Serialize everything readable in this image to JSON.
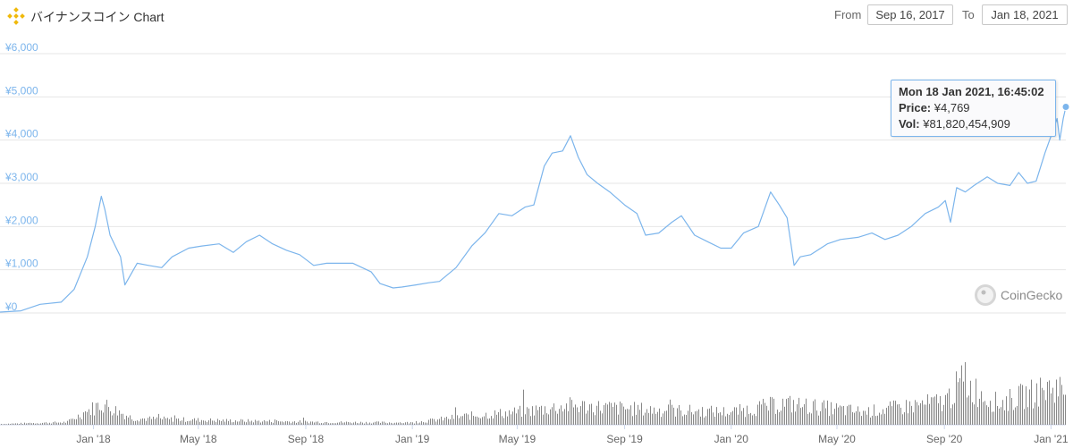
{
  "header": {
    "title": "バイナンスコイン Chart",
    "from_label": "From",
    "from_value": "Sep 16, 2017",
    "to_label": "To",
    "to_value": "Jan 18, 2021",
    "logo_icon": "binance-logo-icon"
  },
  "tooltip": {
    "date": "Mon 18 Jan 2021, 16:45:02",
    "price_label": "Price:",
    "price_value": "¥4,769",
    "vol_label": "Vol:",
    "vol_value": "¥81,820,454,909"
  },
  "watermark": {
    "text": "CoinGecko",
    "icon": "coingecko-logo-icon"
  },
  "colors": {
    "line": "#7cb5ec",
    "grid": "#e6e6e6",
    "volume": "#888888",
    "axis_label": "#7cb5ec"
  },
  "chart_data": {
    "type": "line",
    "title": "バイナンスコイン Chart",
    "xlabel": "",
    "ylabel": "",
    "x_range": [
      "2017-09-16",
      "2021-01-18"
    ],
    "ylim": [
      0,
      6000
    ],
    "y_ticks": [
      "¥0",
      "¥1,000",
      "¥2,000",
      "¥3,000",
      "¥4,000",
      "¥5,000",
      "¥6,000"
    ],
    "y_tick_values": [
      0,
      1000,
      2000,
      3000,
      4000,
      5000,
      6000
    ],
    "x_ticks": [
      "Jan '18",
      "May '18",
      "Sep '18",
      "Jan '19",
      "May '19",
      "Sep '19",
      "Jan '20",
      "May '20",
      "Sep '20",
      "Jan '21"
    ],
    "x_tick_dates": [
      "2018-01-01",
      "2018-05-01",
      "2018-09-01",
      "2019-01-01",
      "2019-05-01",
      "2019-09-01",
      "2020-01-01",
      "2020-05-01",
      "2020-09-01",
      "2021-01-01"
    ],
    "grid": true,
    "legend": "none",
    "series": [
      {
        "name": "Price",
        "points": [
          [
            "2017-09-16",
            20
          ],
          [
            "2017-10-10",
            50
          ],
          [
            "2017-11-01",
            200
          ],
          [
            "2017-11-25",
            250
          ],
          [
            "2017-12-10",
            550
          ],
          [
            "2017-12-25",
            1300
          ],
          [
            "2018-01-03",
            2000
          ],
          [
            "2018-01-10",
            2700
          ],
          [
            "2018-01-14",
            2400
          ],
          [
            "2018-01-20",
            1800
          ],
          [
            "2018-02-01",
            1300
          ],
          [
            "2018-02-06",
            650
          ],
          [
            "2018-02-20",
            1150
          ],
          [
            "2018-03-05",
            1100
          ],
          [
            "2018-03-20",
            1050
          ],
          [
            "2018-04-01",
            1300
          ],
          [
            "2018-04-20",
            1500
          ],
          [
            "2018-05-05",
            1550
          ],
          [
            "2018-05-25",
            1600
          ],
          [
            "2018-06-10",
            1400
          ],
          [
            "2018-06-25",
            1650
          ],
          [
            "2018-07-10",
            1800
          ],
          [
            "2018-07-25",
            1600
          ],
          [
            "2018-08-10",
            1450
          ],
          [
            "2018-08-25",
            1350
          ],
          [
            "2018-09-10",
            1100
          ],
          [
            "2018-09-25",
            1150
          ],
          [
            "2018-10-10",
            1150
          ],
          [
            "2018-10-25",
            1150
          ],
          [
            "2018-11-15",
            950
          ],
          [
            "2018-11-25",
            680
          ],
          [
            "2018-12-10",
            580
          ],
          [
            "2018-12-20",
            600
          ],
          [
            "2019-01-05",
            650
          ],
          [
            "2019-01-20",
            700
          ],
          [
            "2019-02-01",
            730
          ],
          [
            "2019-02-20",
            1050
          ],
          [
            "2019-03-10",
            1550
          ],
          [
            "2019-03-25",
            1850
          ],
          [
            "2019-04-10",
            2300
          ],
          [
            "2019-04-25",
            2250
          ],
          [
            "2019-05-10",
            2450
          ],
          [
            "2019-05-20",
            2500
          ],
          [
            "2019-06-01",
            3400
          ],
          [
            "2019-06-10",
            3700
          ],
          [
            "2019-06-22",
            3750
          ],
          [
            "2019-07-01",
            4100
          ],
          [
            "2019-07-10",
            3600
          ],
          [
            "2019-07-20",
            3200
          ],
          [
            "2019-08-01",
            3000
          ],
          [
            "2019-08-15",
            2800
          ],
          [
            "2019-09-01",
            2500
          ],
          [
            "2019-09-15",
            2300
          ],
          [
            "2019-09-25",
            1800
          ],
          [
            "2019-10-10",
            1850
          ],
          [
            "2019-10-25",
            2100
          ],
          [
            "2019-11-05",
            2250
          ],
          [
            "2019-11-20",
            1800
          ],
          [
            "2019-12-05",
            1650
          ],
          [
            "2019-12-20",
            1500
          ],
          [
            "2020-01-01",
            1500
          ],
          [
            "2020-01-15",
            1850
          ],
          [
            "2020-02-01",
            2000
          ],
          [
            "2020-02-15",
            2800
          ],
          [
            "2020-02-25",
            2500
          ],
          [
            "2020-03-05",
            2200
          ],
          [
            "2020-03-13",
            1100
          ],
          [
            "2020-03-20",
            1300
          ],
          [
            "2020-04-01",
            1350
          ],
          [
            "2020-04-20",
            1600
          ],
          [
            "2020-05-05",
            1700
          ],
          [
            "2020-05-25",
            1750
          ],
          [
            "2020-06-10",
            1850
          ],
          [
            "2020-06-25",
            1700
          ],
          [
            "2020-07-10",
            1800
          ],
          [
            "2020-07-25",
            2000
          ],
          [
            "2020-08-10",
            2300
          ],
          [
            "2020-08-25",
            2450
          ],
          [
            "2020-09-02",
            2600
          ],
          [
            "2020-09-08",
            2100
          ],
          [
            "2020-09-15",
            2900
          ],
          [
            "2020-09-25",
            2800
          ],
          [
            "2020-10-05",
            2950
          ],
          [
            "2020-10-20",
            3150
          ],
          [
            "2020-11-01",
            3000
          ],
          [
            "2020-11-15",
            2950
          ],
          [
            "2020-11-25",
            3250
          ],
          [
            "2020-12-05",
            3000
          ],
          [
            "2020-12-15",
            3050
          ],
          [
            "2020-12-25",
            3700
          ],
          [
            "2021-01-03",
            4200
          ],
          [
            "2021-01-08",
            4500
          ],
          [
            "2021-01-11",
            4000
          ],
          [
            "2021-01-15",
            4500
          ],
          [
            "2021-01-18",
            4769
          ]
        ]
      }
    ],
    "volume_series": {
      "name": "Vol",
      "relative_levels": [
        [
          "2017-09-16",
          0.02
        ],
        [
          "2017-12-01",
          0.06
        ],
        [
          "2018-01-10",
          0.5
        ],
        [
          "2018-02-15",
          0.15
        ],
        [
          "2018-06-01",
          0.1
        ],
        [
          "2018-10-01",
          0.06
        ],
        [
          "2019-01-01",
          0.05
        ],
        [
          "2019-03-01",
          0.2
        ],
        [
          "2019-05-01",
          0.3
        ],
        [
          "2019-07-01",
          0.45
        ],
        [
          "2019-10-01",
          0.35
        ],
        [
          "2020-01-01",
          0.3
        ],
        [
          "2020-03-01",
          0.5
        ],
        [
          "2020-06-01",
          0.3
        ],
        [
          "2020-09-01",
          0.55
        ],
        [
          "2020-09-20",
          1.0
        ],
        [
          "2020-11-01",
          0.5
        ],
        [
          "2021-01-05",
          0.9
        ],
        [
          "2021-01-18",
          0.8
        ]
      ]
    }
  }
}
